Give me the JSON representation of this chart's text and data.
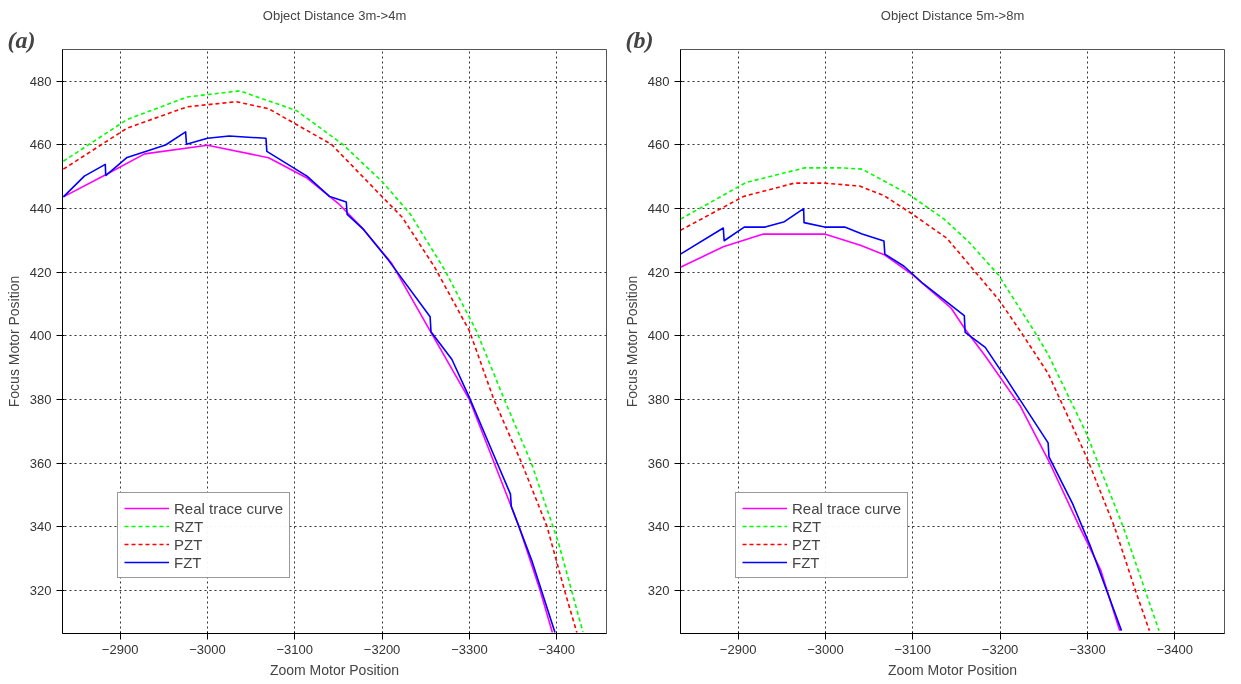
{
  "chart_data": [
    {
      "type": "line",
      "title": "Object Distance 3m->4m",
      "xlabel": "Zoom Motor Position",
      "ylabel": "Focus Motor Position",
      "annotations": [
        "(a)"
      ],
      "xlim": [
        -2834,
        -3457
      ],
      "ylim": [
        306.5,
        490
      ],
      "xticks": [
        -2900,
        -3000,
        -3100,
        -3200,
        -3300,
        -3400
      ],
      "yticks": [
        320,
        340,
        360,
        380,
        400,
        420,
        440,
        460,
        480
      ],
      "grid": true,
      "legend": "bottom left",
      "series": [
        {
          "name": "Real trace curve",
          "color": "#ff00ff",
          "line_style": "solid",
          "x": [
            -2835,
            -2884,
            -2928,
            -3000,
            -3070,
            -3114,
            -3150,
            -3178,
            -3211,
            -3255,
            -3300,
            -3328,
            -3357,
            -3381,
            -3395
          ],
          "values": [
            443.7,
            450.7,
            457.2,
            459.9,
            456,
            449.6,
            441.6,
            433.7,
            422.8,
            401.6,
            380,
            360.4,
            340,
            320,
            306.8
          ]
        },
        {
          "name": "RZT",
          "color": "#00ff00",
          "line_style": "dashed",
          "x": [
            -2835,
            -2908,
            -2977,
            -3037,
            -3102,
            -3155,
            -3200,
            -3232,
            -3272,
            -3308,
            -3340,
            -3371,
            -3402,
            -3430
          ],
          "values": [
            454.9,
            468,
            475.1,
            477,
            470.8,
            460.2,
            448.5,
            438.4,
            420.6,
            401.6,
            380,
            360,
            335,
            307
          ]
        },
        {
          "name": "PZT",
          "color": "#ff0000",
          "line_style": "dashed",
          "x": [
            -2835,
            -2908,
            -2977,
            -3033,
            -3070,
            -3142,
            -3191,
            -3223,
            -3260,
            -3300,
            -3328,
            -3360,
            -3389,
            -3409,
            -3423
          ],
          "values": [
            452.4,
            465.3,
            472,
            473.6,
            471.4,
            460.2,
            446.3,
            437.3,
            421.7,
            401.6,
            380,
            360,
            340,
            320,
            306.8
          ]
        },
        {
          "name": "FZT",
          "color": "#0000ff",
          "line_style": "solid",
          "x": [
            -2835,
            -2859,
            -2883,
            -2883.5,
            -2908,
            -2952,
            -2975,
            -2976,
            -3000,
            -3025,
            -3067,
            -3068,
            -3114,
            -3140,
            -3159,
            -3160,
            -3179,
            -3207,
            -3255,
            -3256,
            -3280,
            -3300,
            -3328,
            -3347,
            -3348,
            -3372,
            -3398
          ],
          "values": [
            443.7,
            450.2,
            453.9,
            450.4,
            456.1,
            460,
            464.1,
            460.2,
            462.1,
            462.8,
            462.1,
            458,
            450.2,
            443.8,
            442.1,
            438.2,
            433.4,
            423.9,
            406,
            401.3,
            392.6,
            380.6,
            362.5,
            350.3,
            346.4,
            329,
            306.8
          ]
        }
      ]
    },
    {
      "type": "line",
      "title": "Object Distance 5m->8m",
      "xlabel": "Zoom Motor Position",
      "ylabel": "Focus Motor Position",
      "annotations": [
        "(b)"
      ],
      "xlim": [
        -2834,
        -3457
      ],
      "ylim": [
        306.5,
        490
      ],
      "xticks": [
        -2900,
        -3000,
        -3100,
        -3200,
        -3300,
        -3400
      ],
      "yticks": [
        320,
        340,
        360,
        380,
        400,
        420,
        440,
        460,
        480
      ],
      "grid": true,
      "legend": "bottom left",
      "series": [
        {
          "name": "Real trace curve",
          "color": "#ff00ff",
          "line_style": "solid",
          "x": [
            -2834,
            -2883,
            -2929,
            -2999,
            -3040,
            -3068,
            -3100,
            -3144,
            -3160,
            -3183,
            -3223,
            -3257,
            -3291,
            -3315,
            -3337
          ],
          "values": [
            421.6,
            428,
            432,
            432,
            428.5,
            425.4,
            419.2,
            408.7,
            402.1,
            393.7,
            378,
            360,
            340,
            326.6,
            307.4
          ]
        },
        {
          "name": "RZT",
          "color": "#00ff00",
          "line_style": "dashed",
          "x": [
            -2834,
            -2909,
            -2976,
            -3020,
            -3042,
            -3096,
            -3136,
            -3164,
            -3198,
            -3240,
            -3255,
            -3299,
            -3341,
            -3382
          ],
          "values": [
            436.7,
            448.2,
            452.8,
            452.8,
            452.4,
            444.4,
            436.7,
            429.6,
            419.2,
            401.1,
            394.2,
            369.3,
            340,
            307.4
          ]
        },
        {
          "name": "PZT",
          "color": "#ff0000",
          "line_style": "dashed",
          "x": [
            -2834,
            -2906,
            -2964,
            -2999,
            -3039,
            -3067,
            -3099,
            -3139,
            -3171,
            -3199,
            -3223,
            -3255,
            -3299,
            -3331,
            -3355,
            -3371
          ],
          "values": [
            433.2,
            443.8,
            448,
            448,
            447.1,
            444.1,
            438.4,
            430.7,
            420.3,
            411.2,
            401.6,
            388.2,
            362,
            340,
            320,
            307.4
          ]
        },
        {
          "name": "FZT",
          "color": "#0000ff",
          "line_style": "solid",
          "x": [
            -2834,
            -2883,
            -2884,
            -2907,
            -2931,
            -2953,
            -2975,
            -2975.5,
            -2999,
            -3022,
            -3042,
            -3067,
            -3068,
            -3090,
            -3112,
            -3159,
            -3160,
            -3183,
            -3207,
            -3255,
            -3256,
            -3283,
            -3303,
            -3339
          ],
          "values": [
            425.7,
            433.9,
            429.9,
            434.2,
            434.2,
            435.9,
            440,
            435.6,
            434.2,
            434.2,
            432,
            429.8,
            425.7,
            421.9,
            416.4,
            406.4,
            401.1,
            396.4,
            386.6,
            366.4,
            362,
            347.3,
            334.2,
            307.4
          ]
        }
      ]
    }
  ]
}
